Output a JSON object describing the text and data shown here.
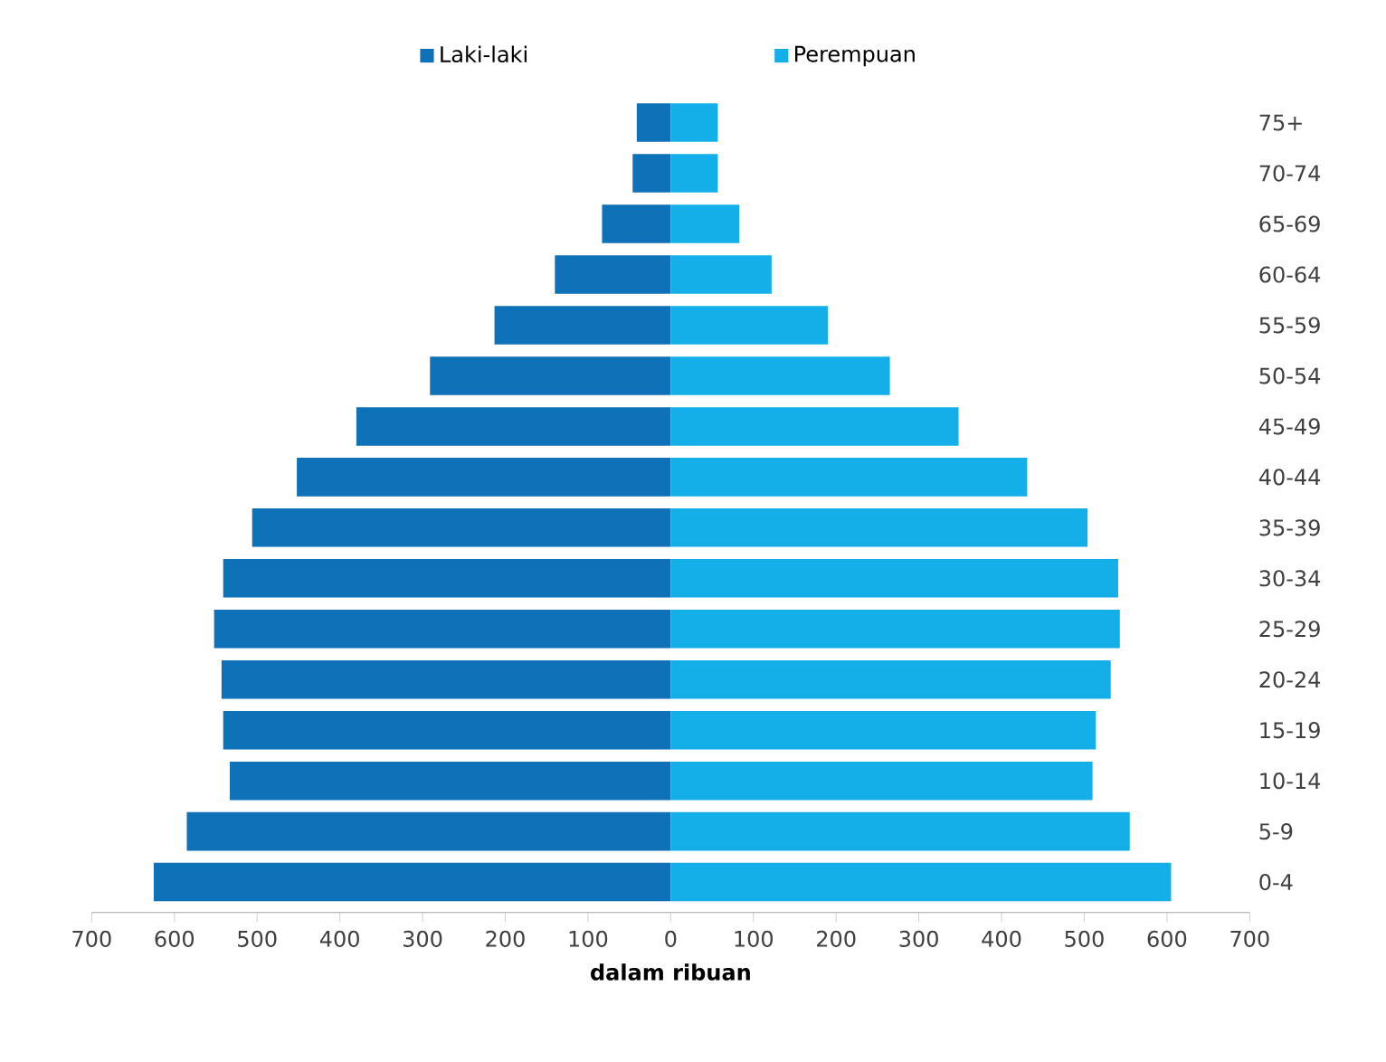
{
  "chart_data": {
    "type": "bar",
    "orientation": "horizontal",
    "xlabel": "dalam ribuan",
    "categories": [
      "75+",
      "70-74",
      "65-69",
      "60-64",
      "55-59",
      "50-54",
      "45-49",
      "40-44",
      "35-39",
      "30-34",
      "25-29",
      "20-24",
      "15-19",
      "10-14",
      "5-9",
      "0-4"
    ],
    "series": [
      {
        "name": "Laki-laki",
        "color": "#0f71b8",
        "values": [
          -41,
          -46,
          -83,
          -140,
          -213,
          -291,
          -380,
          -452,
          -506,
          -541,
          -552,
          -543,
          -541,
          -533,
          -585,
          -625
        ]
      },
      {
        "name": "Perempuan",
        "color": "#14aee8",
        "values": [
          57,
          57,
          83,
          122,
          190,
          265,
          348,
          431,
          504,
          541,
          543,
          532,
          514,
          510,
          555,
          605
        ]
      }
    ],
    "xlim": [
      -700,
      700
    ],
    "xticks": [
      {
        "value": -700,
        "label": "700"
      },
      {
        "value": -600,
        "label": "600"
      },
      {
        "value": -500,
        "label": "500"
      },
      {
        "value": -400,
        "label": "400"
      },
      {
        "value": -300,
        "label": "300"
      },
      {
        "value": -200,
        "label": "200"
      },
      {
        "value": -100,
        "label": "100"
      },
      {
        "value": 0,
        "label": "0"
      },
      {
        "value": 100,
        "label": "100"
      },
      {
        "value": 200,
        "label": "200"
      },
      {
        "value": 300,
        "label": "300"
      },
      {
        "value": 400,
        "label": "400"
      },
      {
        "value": 500,
        "label": "500"
      },
      {
        "value": 600,
        "label": "600"
      },
      {
        "value": 700,
        "label": "700"
      }
    ],
    "stacked": true,
    "legend": "top"
  }
}
